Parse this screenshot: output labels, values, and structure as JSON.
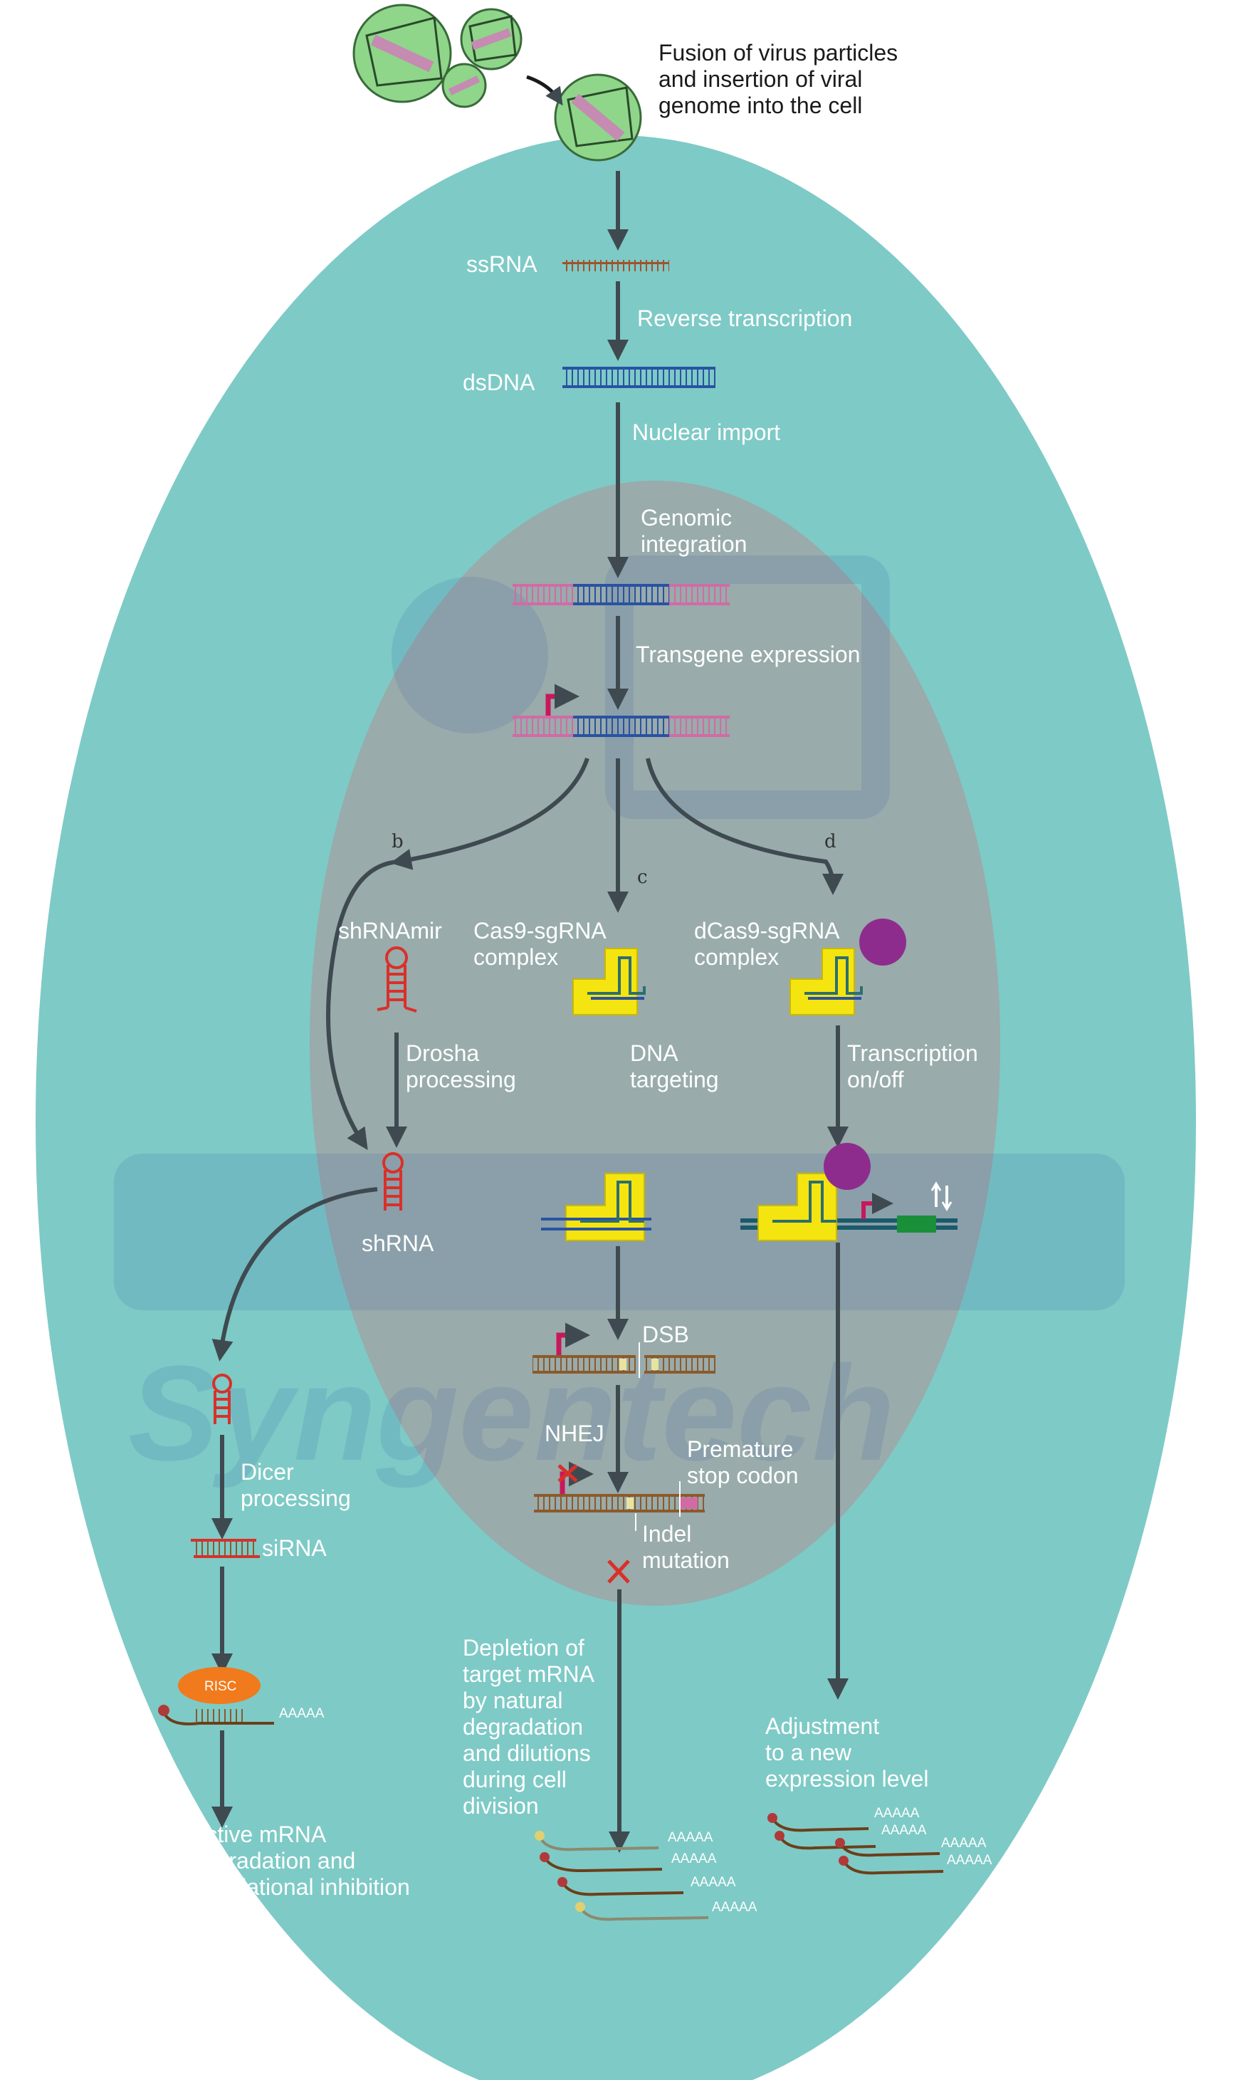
{
  "labels": {
    "fusion": [
      "Fusion of virus particles",
      "and insertion of viral",
      "genome into the cell"
    ],
    "ssrna": "ssRNA",
    "reverse_transcription": "Reverse transcription",
    "dsdna": "dsDNA",
    "nuclear_import": "Nuclear import",
    "genomic_integration": [
      "Genomic",
      "integration"
    ],
    "transgene_expression": "Transgene expression",
    "branch_b": "b",
    "branch_c": "c",
    "branch_d": "d",
    "shrnamir": "shRNAmir",
    "cas9_complex": [
      "Cas9-sgRNA",
      "complex"
    ],
    "dcas9_complex": [
      "dCas9-sgRNA",
      "complex"
    ],
    "drosha": [
      "Drosha",
      "processing"
    ],
    "dna_targeting": [
      "DNA",
      "targeting"
    ],
    "transcription_onoff": [
      "Transcription",
      "on/off"
    ],
    "shrna": "shRNA",
    "dsb": "DSB",
    "nhej": "NHEJ",
    "premature_stop": [
      "Premature",
      "stop codon"
    ],
    "indel": [
      "Indel",
      "mutation"
    ],
    "dicer": [
      "Dicer",
      "processing"
    ],
    "sirna": "siRNA",
    "risc": "RISC",
    "polya": "AAAAA",
    "depletion": [
      "Depletion of",
      "target mRNA",
      "by natural",
      "degradation",
      "and dilutions",
      "during cell",
      "division"
    ],
    "adjustment": [
      "Adjustment",
      "to a new",
      "expression level"
    ],
    "active_degradation": [
      "Active mRNA",
      "degradation and",
      "translational inhibition"
    ]
  },
  "watermark": "Syngentech",
  "colors": {
    "cell": "#7ecac6",
    "nucleus": "#9ba8a8",
    "arrow": "#3f4a50",
    "rna": "#a0522d",
    "dna_blue": "#2952a3",
    "dna_pink": "#d16ba5",
    "promoter": "#c8185c",
    "cas9": "#f4e410",
    "effector": "#8e2c8e",
    "shrna": "#d9302a",
    "virus": "#8fd68a",
    "risc": "#f07a1c",
    "gene": "#1a8f3a"
  },
  "icons": [
    "virus-icon",
    "promoter-arrow-icon",
    "hairpin-icon",
    "cas9-icon",
    "effector-icon",
    "cross-icon",
    "risc-icon",
    "mrna-icon"
  ]
}
